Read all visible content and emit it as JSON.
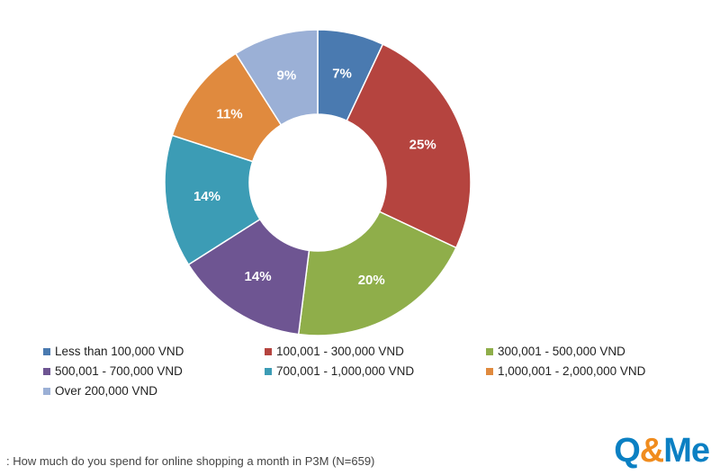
{
  "chart_data": {
    "type": "pie",
    "variant": "donut",
    "title": "",
    "categories": [
      "Less than 100,000 VND",
      "100,001 - 300,000 VND",
      "300,001 - 500,000 VND",
      "500,001 - 700,000 VND",
      "700,001 - 1,000,000 VND",
      "1,000,001 - 2,000,000 VND",
      "Over 200,000 VND"
    ],
    "values": [
      7,
      25,
      20,
      14,
      14,
      11,
      9
    ],
    "labels": [
      "7%",
      "25%",
      "20%",
      "14%",
      "14%",
      "11%",
      "9%"
    ],
    "colors": [
      "#4a7ab0",
      "#b5443f",
      "#8fae4a",
      "#6e5592",
      "#3c9cb5",
      "#e08a3e",
      "#9bb0d6"
    ],
    "legend_position": "bottom"
  },
  "caption": ": How much do you spend for online shopping a month in P3M (N=659)",
  "logo": {
    "q": "Q",
    "amp": "&",
    "me": "Me"
  }
}
